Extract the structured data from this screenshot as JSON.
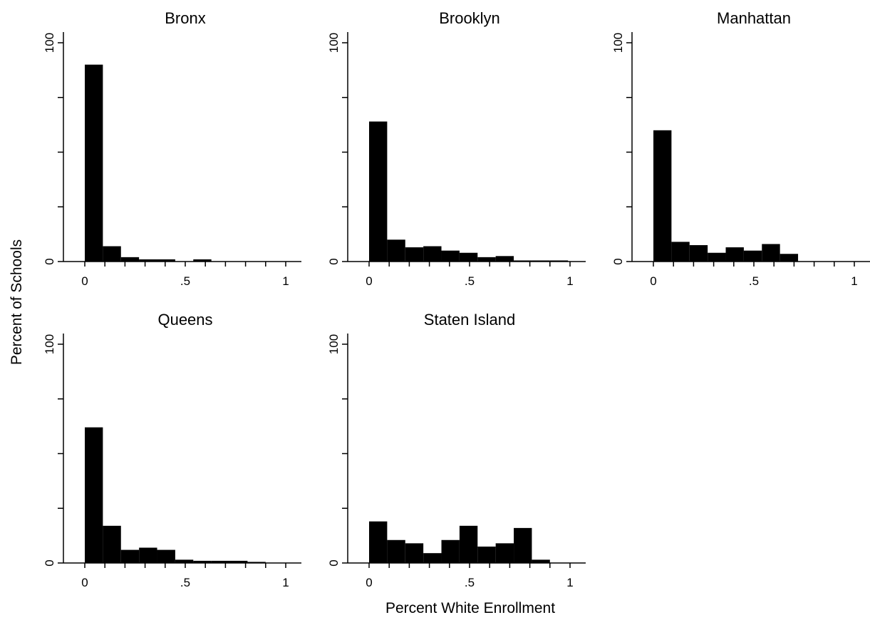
{
  "chart_data": {
    "type": "bar",
    "xlabel": "Percent White Enrollment",
    "ylabel": "Percent of Schools",
    "xlim": [
      0,
      1
    ],
    "ylim": [
      0,
      100
    ],
    "xticks": [
      "0",
      ".5",
      "1"
    ],
    "yticks": [
      "0",
      "100"
    ],
    "bin_width": 0.09,
    "grid": false,
    "panels": [
      {
        "title": "Bronx",
        "bins": [
          0,
          0.09,
          0.18,
          0.27,
          0.36,
          0.45,
          0.54,
          0.63,
          0.72,
          0.81,
          0.9
        ],
        "values": [
          90,
          7,
          2,
          1,
          1,
          0,
          1,
          0,
          0,
          0,
          0
        ]
      },
      {
        "title": "Brooklyn",
        "bins": [
          0,
          0.09,
          0.18,
          0.27,
          0.36,
          0.45,
          0.54,
          0.63,
          0.72,
          0.81,
          0.9
        ],
        "values": [
          64,
          10,
          6.5,
          7,
          5,
          4,
          2,
          2.5,
          0.5,
          0.5,
          0.5
        ]
      },
      {
        "title": "Manhattan",
        "bins": [
          0,
          0.09,
          0.18,
          0.27,
          0.36,
          0.45,
          0.54,
          0.63,
          0.72,
          0.81,
          0.9
        ],
        "values": [
          60,
          9,
          7.5,
          4,
          6.5,
          5,
          8,
          3.5,
          0,
          0,
          0
        ]
      },
      {
        "title": "Queens",
        "bins": [
          0,
          0.09,
          0.18,
          0.27,
          0.36,
          0.45,
          0.54,
          0.63,
          0.72,
          0.81,
          0.9
        ],
        "values": [
          62,
          17,
          6,
          7,
          6,
          1.5,
          1,
          1,
          1,
          0.5,
          0
        ]
      },
      {
        "title": "Staten Island",
        "bins": [
          0,
          0.09,
          0.18,
          0.27,
          0.36,
          0.45,
          0.54,
          0.63,
          0.72,
          0.81,
          0.9
        ],
        "values": [
          19,
          10.5,
          9,
          4.5,
          10.5,
          17,
          7.5,
          9,
          16,
          1.5,
          0
        ]
      }
    ]
  }
}
